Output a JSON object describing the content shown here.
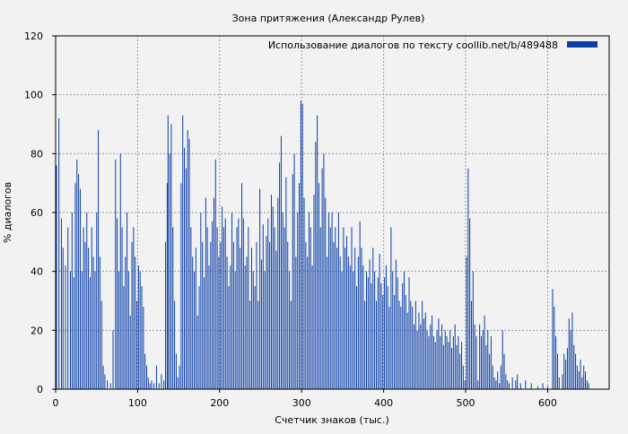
{
  "chart_data": {
    "type": "bar",
    "title": "Зона притяжения (Александр Рулев)",
    "xlabel": "Счетчик знаков (тыс.)",
    "ylabel": "% диалогов",
    "xlim": [
      0,
      675
    ],
    "ylim": [
      0,
      120
    ],
    "x_ticks": [
      0,
      100,
      200,
      300,
      400,
      500,
      600
    ],
    "y_ticks": [
      0,
      20,
      40,
      60,
      80,
      100,
      120
    ],
    "grid": true,
    "legend_position": "top-right",
    "series": [
      {
        "name": "Использование диалогов по тексту  coollib.net/b/489488",
        "color": "#0b3fa8",
        "bar_width": 1,
        "points": [
          [
            1,
            76
          ],
          [
            4,
            92
          ],
          [
            7,
            58
          ],
          [
            9,
            48
          ],
          [
            12,
            42
          ],
          [
            15,
            55
          ],
          [
            18,
            40
          ],
          [
            20,
            60
          ],
          [
            22,
            38
          ],
          [
            24,
            70
          ],
          [
            26,
            78
          ],
          [
            28,
            73
          ],
          [
            30,
            68
          ],
          [
            32,
            40
          ],
          [
            34,
            55
          ],
          [
            36,
            50
          ],
          [
            38,
            60
          ],
          [
            40,
            48
          ],
          [
            42,
            38
          ],
          [
            44,
            55
          ],
          [
            46,
            45
          ],
          [
            48,
            40
          ],
          [
            50,
            60
          ],
          [
            52,
            88
          ],
          [
            54,
            45
          ],
          [
            56,
            30
          ],
          [
            58,
            8
          ],
          [
            60,
            5
          ],
          [
            63,
            3
          ],
          [
            67,
            2
          ],
          [
            70,
            20
          ],
          [
            73,
            78
          ],
          [
            75,
            58
          ],
          [
            77,
            40
          ],
          [
            79,
            80
          ],
          [
            81,
            55
          ],
          [
            83,
            35
          ],
          [
            85,
            45
          ],
          [
            87,
            60
          ],
          [
            89,
            40
          ],
          [
            91,
            25
          ],
          [
            93,
            50
          ],
          [
            95,
            55
          ],
          [
            97,
            45
          ],
          [
            99,
            30
          ],
          [
            101,
            42
          ],
          [
            103,
            40
          ],
          [
            105,
            35
          ],
          [
            107,
            28
          ],
          [
            109,
            12
          ],
          [
            111,
            8
          ],
          [
            113,
            4
          ],
          [
            115,
            2
          ],
          [
            117,
            3
          ],
          [
            120,
            2
          ],
          [
            123,
            8
          ],
          [
            126,
            2
          ],
          [
            129,
            5
          ],
          [
            132,
            3
          ],
          [
            134,
            50
          ],
          [
            136,
            70
          ],
          [
            137,
            93
          ],
          [
            139,
            80
          ],
          [
            141,
            90
          ],
          [
            143,
            55
          ],
          [
            145,
            30
          ],
          [
            147,
            12
          ],
          [
            149,
            4
          ],
          [
            151,
            8
          ],
          [
            153,
            70
          ],
          [
            155,
            93
          ],
          [
            157,
            82
          ],
          [
            159,
            75
          ],
          [
            161,
            88
          ],
          [
            163,
            85
          ],
          [
            165,
            55
          ],
          [
            167,
            45
          ],
          [
            169,
            40
          ],
          [
            171,
            48
          ],
          [
            173,
            25
          ],
          [
            175,
            35
          ],
          [
            177,
            60
          ],
          [
            179,
            50
          ],
          [
            181,
            38
          ],
          [
            183,
            65
          ],
          [
            185,
            55
          ],
          [
            187,
            42
          ],
          [
            189,
            50
          ],
          [
            191,
            57
          ],
          [
            193,
            65
          ],
          [
            195,
            78
          ],
          [
            197,
            55
          ],
          [
            199,
            45
          ],
          [
            201,
            50
          ],
          [
            203,
            62
          ],
          [
            205,
            55
          ],
          [
            207,
            58
          ],
          [
            209,
            45
          ],
          [
            211,
            35
          ],
          [
            213,
            42
          ],
          [
            215,
            60
          ],
          [
            217,
            50
          ],
          [
            219,
            40
          ],
          [
            221,
            55
          ],
          [
            223,
            58
          ],
          [
            225,
            48
          ],
          [
            227,
            70
          ],
          [
            229,
            58
          ],
          [
            231,
            42
          ],
          [
            233,
            45
          ],
          [
            235,
            55
          ],
          [
            237,
            30
          ],
          [
            239,
            48
          ],
          [
            241,
            40
          ],
          [
            243,
            35
          ],
          [
            245,
            50
          ],
          [
            247,
            30
          ],
          [
            249,
            68
          ],
          [
            251,
            44
          ],
          [
            253,
            56
          ],
          [
            255,
            40
          ],
          [
            257,
            52
          ],
          [
            259,
            58
          ],
          [
            261,
            50
          ],
          [
            263,
            66
          ],
          [
            265,
            62
          ],
          [
            267,
            55
          ],
          [
            269,
            47
          ],
          [
            271,
            65
          ],
          [
            273,
            77
          ],
          [
            275,
            86
          ],
          [
            277,
            60
          ],
          [
            279,
            55
          ],
          [
            281,
            72
          ],
          [
            283,
            50
          ],
          [
            285,
            40
          ],
          [
            287,
            30
          ],
          [
            289,
            73
          ],
          [
            291,
            80
          ],
          [
            293,
            45
          ],
          [
            295,
            60
          ],
          [
            297,
            70
          ],
          [
            299,
            98
          ],
          [
            301,
            97
          ],
          [
            303,
            65
          ],
          [
            305,
            50
          ],
          [
            307,
            45
          ],
          [
            309,
            60
          ],
          [
            311,
            55
          ],
          [
            313,
            42
          ],
          [
            315,
            66
          ],
          [
            317,
            84
          ],
          [
            319,
            93
          ],
          [
            321,
            70
          ],
          [
            323,
            55
          ],
          [
            325,
            75
          ],
          [
            327,
            80
          ],
          [
            329,
            65
          ],
          [
            331,
            45
          ],
          [
            333,
            60
          ],
          [
            335,
            55
          ],
          [
            337,
            60
          ],
          [
            339,
            50
          ],
          [
            341,
            55
          ],
          [
            343,
            48
          ],
          [
            345,
            60
          ],
          [
            347,
            45
          ],
          [
            349,
            40
          ],
          [
            351,
            55
          ],
          [
            353,
            48
          ],
          [
            355,
            52
          ],
          [
            357,
            45
          ],
          [
            359,
            42
          ],
          [
            361,
            55
          ],
          [
            363,
            40
          ],
          [
            365,
            48
          ],
          [
            367,
            35
          ],
          [
            369,
            45
          ],
          [
            371,
            57
          ],
          [
            373,
            48
          ],
          [
            375,
            42
          ],
          [
            377,
            30
          ],
          [
            379,
            40
          ],
          [
            381,
            38
          ],
          [
            383,
            44
          ],
          [
            385,
            36
          ],
          [
            387,
            48
          ],
          [
            389,
            40
          ],
          [
            391,
            30
          ],
          [
            393,
            38
          ],
          [
            395,
            46
          ],
          [
            397,
            36
          ],
          [
            399,
            32
          ],
          [
            401,
            38
          ],
          [
            403,
            42
          ],
          [
            405,
            35
          ],
          [
            407,
            28
          ],
          [
            409,
            55
          ],
          [
            411,
            40
          ],
          [
            413,
            32
          ],
          [
            415,
            44
          ],
          [
            417,
            38
          ],
          [
            419,
            30
          ],
          [
            421,
            28
          ],
          [
            423,
            36
          ],
          [
            425,
            40
          ],
          [
            427,
            32
          ],
          [
            429,
            26
          ],
          [
            431,
            38
          ],
          [
            433,
            30
          ],
          [
            435,
            28
          ],
          [
            437,
            22
          ],
          [
            439,
            30
          ],
          [
            441,
            20
          ],
          [
            443,
            26
          ],
          [
            445,
            22
          ],
          [
            447,
            30
          ],
          [
            449,
            24
          ],
          [
            451,
            26
          ],
          [
            453,
            20
          ],
          [
            455,
            18
          ],
          [
            457,
            22
          ],
          [
            459,
            25
          ],
          [
            461,
            18
          ],
          [
            463,
            16
          ],
          [
            465,
            20
          ],
          [
            467,
            24
          ],
          [
            469,
            18
          ],
          [
            471,
            22
          ],
          [
            473,
            15
          ],
          [
            475,
            20
          ],
          [
            477,
            18
          ],
          [
            479,
            16
          ],
          [
            481,
            20
          ],
          [
            483,
            14
          ],
          [
            485,
            18
          ],
          [
            487,
            22
          ],
          [
            489,
            15
          ],
          [
            491,
            18
          ],
          [
            493,
            12
          ],
          [
            495,
            16
          ],
          [
            497,
            8
          ],
          [
            499,
            3
          ],
          [
            501,
            45
          ],
          [
            503,
            75
          ],
          [
            505,
            58
          ],
          [
            507,
            30
          ],
          [
            509,
            40
          ],
          [
            511,
            22
          ],
          [
            513,
            18
          ],
          [
            515,
            3
          ],
          [
            517,
            22
          ],
          [
            519,
            18
          ],
          [
            521,
            20
          ],
          [
            523,
            25
          ],
          [
            525,
            15
          ],
          [
            527,
            20
          ],
          [
            529,
            12
          ],
          [
            531,
            18
          ],
          [
            533,
            8
          ],
          [
            535,
            4
          ],
          [
            537,
            3
          ],
          [
            539,
            6
          ],
          [
            541,
            2
          ],
          [
            543,
            8
          ],
          [
            545,
            20
          ],
          [
            547,
            12
          ],
          [
            549,
            5
          ],
          [
            551,
            3
          ],
          [
            553,
            2
          ],
          [
            557,
            4
          ],
          [
            561,
            3
          ],
          [
            563,
            5
          ],
          [
            567,
            2
          ],
          [
            573,
            3
          ],
          [
            580,
            2
          ],
          [
            588,
            1
          ],
          [
            594,
            2
          ],
          [
            600,
            1
          ],
          [
            606,
            34
          ],
          [
            608,
            28
          ],
          [
            610,
            18
          ],
          [
            612,
            12
          ],
          [
            614,
            4
          ],
          [
            618,
            5
          ],
          [
            620,
            12
          ],
          [
            622,
            10
          ],
          [
            624,
            14
          ],
          [
            626,
            24
          ],
          [
            628,
            20
          ],
          [
            630,
            26
          ],
          [
            632,
            15
          ],
          [
            634,
            12
          ],
          [
            636,
            8
          ],
          [
            638,
            6
          ],
          [
            640,
            10
          ],
          [
            642,
            4
          ],
          [
            644,
            8
          ],
          [
            646,
            6
          ],
          [
            648,
            3
          ],
          [
            650,
            2
          ]
        ]
      }
    ]
  }
}
